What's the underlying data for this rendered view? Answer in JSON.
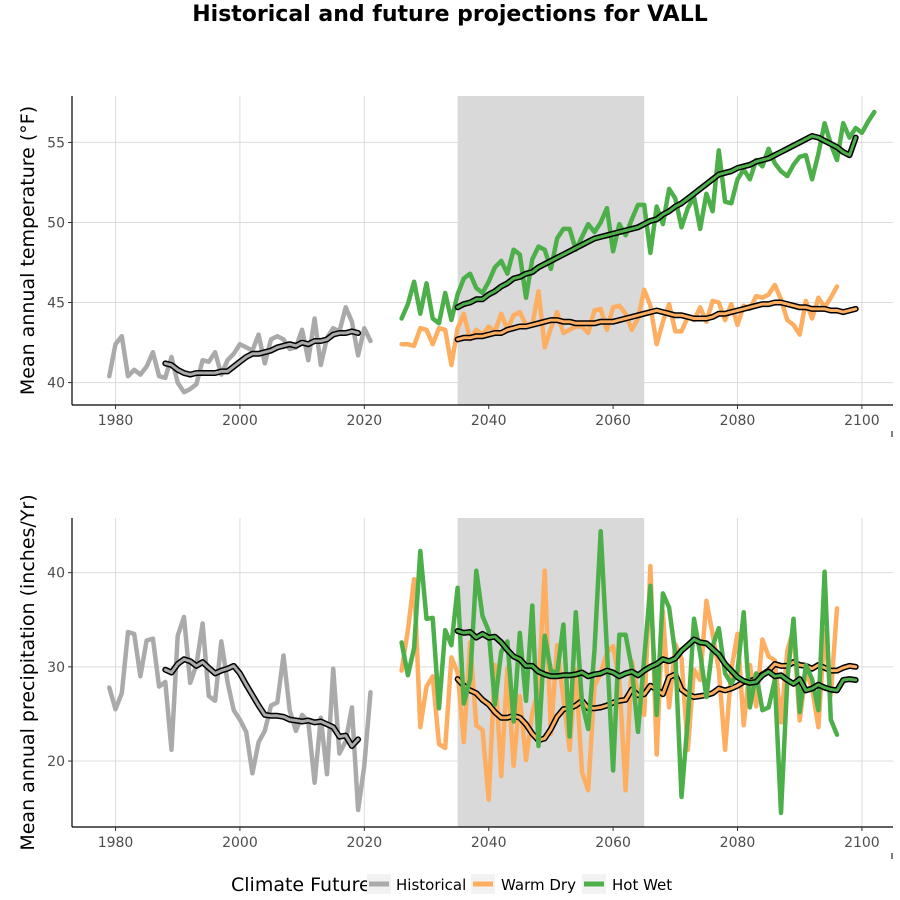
{
  "chart_data": [
    {
      "type": "line",
      "title": "Historical and future projections for VALL",
      "ylabel": "Mean annual temperature (°F)",
      "xlabel": "",
      "xlim": [
        1973,
        2105
      ],
      "ylim": [
        38.6,
        57.9
      ],
      "x_ticks": [
        1980,
        2000,
        2020,
        2040,
        2060,
        2080,
        2100
      ],
      "y_ticks": [
        40,
        45,
        50,
        55
      ],
      "grid": true,
      "shaded_period": [
        2035,
        2065
      ],
      "series": [
        {
          "name": "Historical",
          "color": "#aaaaaa",
          "x_start": 1979,
          "values": [
            40.4,
            42.4,
            42.9,
            40.4,
            40.8,
            40.5,
            41.0,
            41.9,
            40.4,
            40.3,
            41.6,
            40.0,
            39.4,
            39.6,
            39.9,
            41.4,
            41.3,
            41.9,
            40.5,
            41.4,
            41.8,
            42.4,
            42.2,
            42.0,
            43.0,
            41.2,
            42.7,
            42.9,
            42.7,
            42.1,
            42.2,
            43.3,
            41.4,
            44.0,
            41.1,
            42.8,
            43.4,
            43.2,
            44.7,
            43.8,
            41.7,
            43.4,
            42.6
          ]
        },
        {
          "name": "Historical smoothed",
          "color": "#333333",
          "x_start": 1988,
          "values": [
            41.2,
            41.1,
            40.8,
            40.6,
            40.5,
            40.6,
            40.6,
            40.6,
            40.6,
            40.7,
            40.7,
            41.0,
            41.3,
            41.6,
            41.8,
            41.8,
            41.9,
            42.0,
            42.2,
            42.3,
            42.4,
            42.3,
            42.5,
            42.4,
            42.6,
            42.6,
            42.7,
            43.0,
            43.1,
            43.1,
            43.2,
            43.1
          ]
        },
        {
          "name": "Warm Dry",
          "color": "#fdae61",
          "x_start": 2026,
          "values": [
            42.4,
            42.4,
            42.3,
            43.4,
            43.3,
            42.4,
            43.4,
            43.3,
            41.1,
            43.4,
            44.3,
            42.7,
            43.3,
            43.0,
            43.5,
            43.2,
            44.3,
            43.3,
            44.2,
            44.4,
            43.6,
            43.6,
            45.7,
            42.2,
            43.4,
            44.4,
            43.1,
            43.3,
            43.5,
            43.5,
            43.1,
            44.5,
            44.6,
            43.3,
            44.7,
            44.8,
            44.3,
            43.3,
            44.0,
            45.8,
            44.8,
            42.4,
            43.8,
            44.9,
            43.2,
            43.2,
            44.1,
            43.9,
            44.7,
            43.8,
            45.1,
            45.0,
            43.9,
            44.9,
            43.6,
            44.8,
            44.6,
            45.4,
            45.3,
            45.5,
            46.1,
            45.2,
            43.9,
            43.6,
            43.0,
            45.1,
            44.0,
            45.3,
            44.7,
            45.3,
            46.0
          ]
        },
        {
          "name": "Warm Dry smoothed",
          "color": "#333333",
          "x_start": 2035,
          "values": [
            42.7,
            42.8,
            42.8,
            42.9,
            42.9,
            43.0,
            43.1,
            43.1,
            43.3,
            43.4,
            43.5,
            43.5,
            43.6,
            43.7,
            43.8,
            43.9,
            43.9,
            43.8,
            43.8,
            43.7,
            43.7,
            43.7,
            43.7,
            43.8,
            43.8,
            43.8,
            43.9,
            44.0,
            44.1,
            44.2,
            44.3,
            44.4,
            44.5,
            44.4,
            44.3,
            44.2,
            44.2,
            44.1,
            44.0,
            44.0,
            44.0,
            44.1,
            44.3,
            44.3,
            44.4,
            44.5,
            44.6,
            44.7,
            44.8,
            44.9,
            44.9,
            45.0,
            45.0,
            44.9,
            44.8,
            44.7,
            44.7,
            44.6,
            44.6,
            44.6,
            44.5,
            44.5,
            44.4,
            44.5,
            44.6
          ]
        },
        {
          "name": "Hot Wet",
          "color": "#4daf4a",
          "x_start": 2026,
          "values": [
            44.0,
            44.9,
            46.3,
            44.3,
            46.2,
            44.0,
            43.7,
            45.6,
            43.9,
            45.5,
            46.5,
            46.8,
            45.9,
            45.6,
            46.3,
            47.2,
            47.6,
            46.8,
            48.3,
            48.0,
            45.3,
            47.7,
            48.5,
            48.3,
            47.1,
            49.0,
            49.6,
            49.6,
            48.3,
            49.1,
            49.9,
            49.4,
            50.0,
            50.9,
            48.2,
            49.9,
            49.2,
            50.2,
            51.1,
            51.1,
            48.1,
            51.0,
            49.9,
            52.1,
            51.5,
            49.7,
            50.9,
            51.6,
            49.6,
            51.8,
            50.7,
            54.5,
            51.3,
            51.2,
            52.7,
            53.3,
            52.7,
            53.9,
            53.5,
            54.6,
            53.7,
            53.2,
            52.9,
            53.6,
            54.1,
            54.2,
            52.7,
            54.3,
            56.2,
            54.9,
            53.9,
            56.2,
            55.3,
            55.9,
            55.6,
            56.3,
            56.9
          ]
        },
        {
          "name": "Hot Wet smoothed",
          "color": "#333333",
          "x_start": 2035,
          "values": [
            44.7,
            44.9,
            45.0,
            45.2,
            45.2,
            45.5,
            45.7,
            46.0,
            46.2,
            46.5,
            46.6,
            46.8,
            46.9,
            47.2,
            47.4,
            47.6,
            47.8,
            48.0,
            48.2,
            48.4,
            48.6,
            48.8,
            49.0,
            49.1,
            49.2,
            49.3,
            49.4,
            49.5,
            49.6,
            49.7,
            49.9,
            50.1,
            50.2,
            50.5,
            50.7,
            51.0,
            51.2,
            51.5,
            51.8,
            52.1,
            52.4,
            52.7,
            53.0,
            53.1,
            53.2,
            53.4,
            53.5,
            53.6,
            53.8,
            53.9,
            54.0,
            54.2,
            54.4,
            54.6,
            54.8,
            55.0,
            55.2,
            55.4,
            55.3,
            55.1,
            54.9,
            54.7,
            54.4,
            54.2,
            55.3
          ]
        }
      ]
    },
    {
      "type": "line",
      "ylabel": "Mean annual precipitation (inches/Yr)",
      "xlabel": "",
      "xlim": [
        1973,
        2105
      ],
      "ylim": [
        13.0,
        45.8
      ],
      "x_ticks": [
        1980,
        2000,
        2020,
        2040,
        2060,
        2080,
        2100
      ],
      "y_ticks": [
        20,
        30,
        40
      ],
      "grid": true,
      "shaded_period": [
        2035,
        2065
      ],
      "series": [
        {
          "name": "Historical",
          "color": "#aaaaaa",
          "x_start": 1979,
          "values": [
            27.8,
            25.5,
            27.2,
            33.7,
            33.5,
            29.0,
            32.8,
            33.0,
            27.9,
            28.4,
            21.2,
            33.3,
            35.3,
            28.3,
            30.2,
            34.6,
            26.9,
            26.4,
            32.7,
            28.4,
            25.4,
            24.4,
            23.1,
            18.7,
            22.0,
            23.2,
            25.9,
            26.2,
            31.2,
            25.4,
            23.2,
            24.9,
            24.2,
            17.7,
            24.6,
            18.6,
            29.8,
            20.8,
            22.1,
            25.7,
            14.8,
            19.5,
            27.3
          ]
        },
        {
          "name": "Historical smoothed",
          "color": "#333333",
          "x_start": 1988,
          "values": [
            29.7,
            29.4,
            30.3,
            30.8,
            30.6,
            30.1,
            30.5,
            29.9,
            29.3,
            29.6,
            29.8,
            30.1,
            29.3,
            28.1,
            27.0,
            25.9,
            24.9,
            24.8,
            24.8,
            24.7,
            24.4,
            24.3,
            24.2,
            24.3,
            24.1,
            24.2,
            23.9,
            23.6,
            22.6,
            22.7,
            21.6,
            22.3
          ]
        },
        {
          "name": "Warm Dry",
          "color": "#fdae61",
          "x_start": 2026,
          "values": [
            29.6,
            33.9,
            39.3,
            23.6,
            27.9,
            29.0,
            21.8,
            21.4,
            31.0,
            29.4,
            22.0,
            32.6,
            23.8,
            23.3,
            15.9,
            30.2,
            18.4,
            29.9,
            19.5,
            26.9,
            20.1,
            25.1,
            27.6,
            40.2,
            22.9,
            32.3,
            26.6,
            21.2,
            29.7,
            18.8,
            16.9,
            28.0,
            29.3,
            31.5,
            32.2,
            28.6,
            16.9,
            30.6,
            27.1,
            24.9,
            40.7,
            20.7,
            35.9,
            25.7,
            32.4,
            30.9,
            21.2,
            29.7,
            28.6,
            37.0,
            33.5,
            29.7,
            21.2,
            29.7,
            33.5,
            23.8,
            30.2,
            25.8,
            32.9,
            31.1,
            30.7,
            24.1,
            31.7,
            34.0,
            24.3,
            29.6,
            27.7,
            23.6,
            33.9,
            27.0,
            36.2
          ]
        },
        {
          "name": "Warm Dry smoothed",
          "color": "#333333",
          "x_start": 2035,
          "values": [
            28.7,
            28.0,
            27.5,
            27.2,
            26.5,
            26.0,
            25.2,
            24.6,
            24.6,
            24.8,
            24.6,
            23.9,
            22.9,
            22.2,
            22.4,
            23.4,
            24.7,
            25.5,
            25.6,
            25.9,
            26.4,
            25.6,
            25.6,
            25.7,
            25.9,
            26.2,
            26.4,
            26.5,
            27.6,
            27.0,
            27.1,
            28.0,
            27.6,
            27.1,
            28.9,
            29.2,
            27.6,
            27.1,
            26.8,
            26.9,
            27.0,
            27.2,
            27.7,
            27.5,
            27.7,
            28.0,
            28.4,
            28.5,
            28.7,
            29.2,
            29.6,
            30.3,
            30.1,
            30.1,
            30.5,
            30.2,
            30.1,
            29.8,
            30.2,
            29.9,
            29.6,
            29.6,
            29.9,
            30.1,
            30.0
          ]
        },
        {
          "name": "Hot Wet",
          "color": "#4daf4a",
          "x_start": 2026,
          "values": [
            32.6,
            29.1,
            32.0,
            42.3,
            35.1,
            35.2,
            25.6,
            33.9,
            32.3,
            38.4,
            26.1,
            28.7,
            40.2,
            35.4,
            33.8,
            26.0,
            31.6,
            32.7,
            24.2,
            33.6,
            26.4,
            36.5,
            21.6,
            33.3,
            29.6,
            29.3,
            34.5,
            22.6,
            35.8,
            26.2,
            23.4,
            31.8,
            44.4,
            31.9,
            19.0,
            33.4,
            33.4,
            29.9,
            23.1,
            30.9,
            38.6,
            24.9,
            37.8,
            36.3,
            31.3,
            16.2,
            24.4,
            35.1,
            31.4,
            26.8,
            32.2,
            34.1,
            29.3,
            28.2,
            29.5,
            35.8,
            25.7,
            29.3,
            25.4,
            25.7,
            28.6,
            14.5,
            28.6,
            35.1,
            25.2,
            30.2,
            28.7,
            25.4,
            40.1,
            24.4,
            22.8
          ]
        },
        {
          "name": "Hot Wet smoothed",
          "color": "#333333",
          "x_start": 2035,
          "values": [
            33.8,
            33.6,
            33.7,
            33.1,
            33.5,
            33.1,
            33.2,
            32.6,
            31.8,
            31.1,
            30.8,
            30.1,
            30.1,
            29.5,
            29.2,
            29.0,
            29.0,
            29.1,
            29.1,
            29.2,
            29.4,
            29.0,
            29.2,
            29.3,
            29.6,
            29.4,
            29.0,
            29.3,
            29.5,
            29.1,
            29.6,
            30.0,
            30.3,
            30.8,
            30.6,
            30.9,
            31.7,
            32.3,
            32.9,
            32.6,
            32.5,
            31.9,
            31.3,
            30.3,
            29.6,
            28.9,
            28.5,
            28.3,
            28.4,
            29.1,
            29.5,
            29.0,
            29.1,
            28.6,
            28.2,
            28.7,
            27.5,
            27.7,
            28.1,
            27.8,
            27.6,
            27.5,
            28.6,
            28.7,
            28.6
          ]
        }
      ]
    }
  ],
  "legend": {
    "title": "Climate Future",
    "items": [
      {
        "label": "Historical",
        "color": "#aaaaaa"
      },
      {
        "label": "Warm Dry",
        "color": "#fdae61"
      },
      {
        "label": "Hot Wet",
        "color": "#4daf4a"
      }
    ]
  }
}
